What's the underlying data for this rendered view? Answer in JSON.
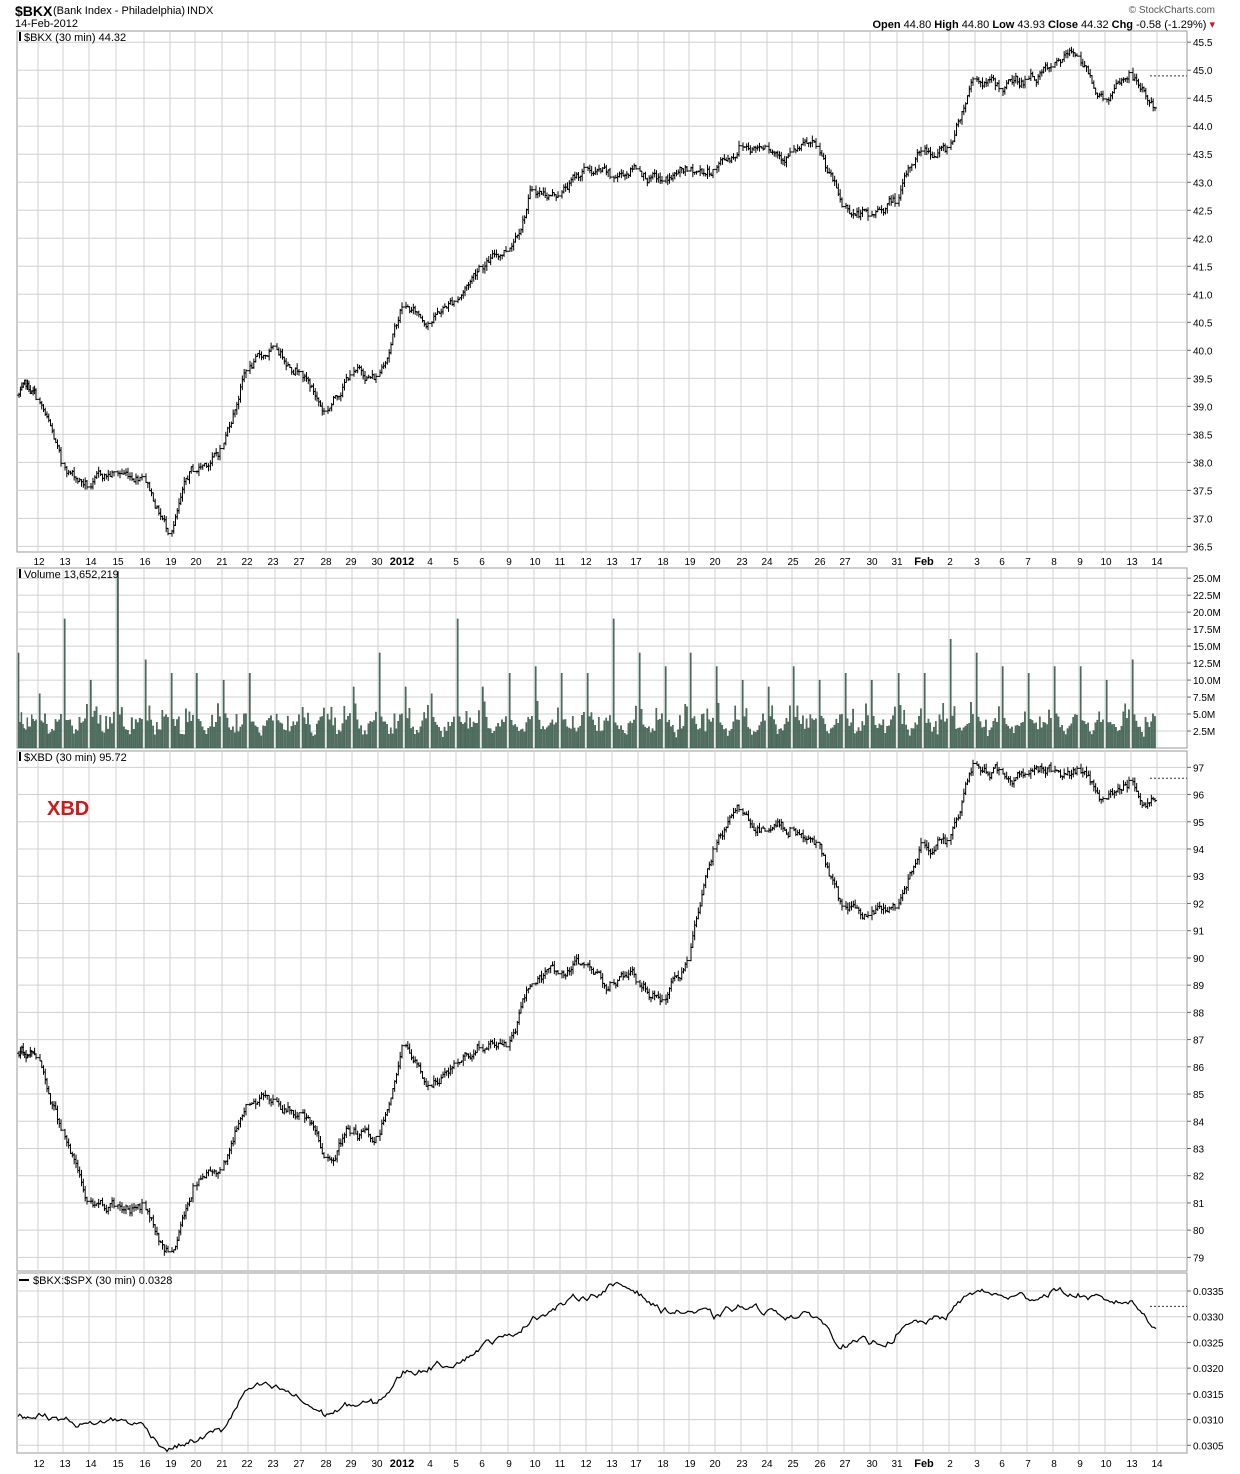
{
  "header": {
    "symbol": "$BKX",
    "name": "(Bank Index - Philadelphia)",
    "exchange": "INDX",
    "date": "14-Feb-2012",
    "watermark": "© StockCharts.com",
    "quote": {
      "open_label": "Open",
      "open": "44.80",
      "high_label": "High",
      "high": "44.80",
      "low_label": "Low",
      "low": "43.93",
      "close_label": "Close",
      "close": "44.32",
      "chg_label": "Chg",
      "chg": "-0.58 (-1.29%)",
      "chg_arrow": "▾"
    }
  },
  "colors": {
    "grid": "#d0d0d0",
    "bars": "#000000",
    "volume": "#4e7261",
    "annotation": "#d01818",
    "down_arrow": "#c02020"
  },
  "x_axis": {
    "labels": [
      "12",
      "13",
      "14",
      "15",
      "16",
      "19",
      "20",
      "21",
      "22",
      "23",
      "27",
      "28",
      "29",
      "30",
      "2012",
      "4",
      "5",
      "6",
      "9",
      "10",
      "11",
      "12",
      "13",
      "17",
      "18",
      "19",
      "20",
      "23",
      "24",
      "25",
      "26",
      "27",
      "30",
      "31",
      "Feb",
      "2",
      "3",
      "6",
      "7",
      "8",
      "9",
      "10",
      "13",
      "14"
    ],
    "bold_labels": [
      "2012",
      "Feb"
    ]
  },
  "panels": {
    "price": {
      "legend": "$BKX (30 min) 44.32",
      "last": 44.32
    },
    "volume": {
      "legend": "Volume 13,652,219"
    },
    "xbd": {
      "legend": "$XBD (30 min) 95.72",
      "annotation": "XBD",
      "last": 95.72
    },
    "ratio": {
      "legend": "$BKX:$SPX (30 min) 0.0328",
      "last": 0.0328
    }
  },
  "chart_data": [
    {
      "type": "ohlc",
      "series_name": "$BKX (30 min)",
      "x": [
        "12",
        "13",
        "14",
        "15",
        "16",
        "19",
        "20",
        "21",
        "22",
        "23",
        "27",
        "28",
        "29",
        "30",
        "2012",
        "4",
        "5",
        "6",
        "9",
        "10",
        "11",
        "12",
        "13",
        "17",
        "18",
        "19",
        "20",
        "23",
        "24",
        "25",
        "26",
        "27",
        "30",
        "31",
        "Feb",
        "2",
        "3",
        "6",
        "7",
        "8",
        "9",
        "10",
        "13",
        "14"
      ],
      "approx_close_by_day": [
        39.2,
        38.0,
        37.6,
        37.8,
        37.8,
        36.8,
        37.9,
        38.2,
        39.7,
        40.0,
        39.7,
        38.9,
        39.6,
        39.5,
        40.8,
        40.5,
        40.9,
        41.5,
        41.8,
        42.9,
        42.8,
        43.2,
        43.1,
        43.3,
        43.0,
        43.2,
        43.2,
        43.6,
        43.7,
        43.5,
        43.6,
        42.6,
        42.4,
        42.7,
        43.6,
        43.6,
        44.9,
        44.7,
        44.8,
        45.0,
        45.3,
        44.5,
        44.9,
        44.3
      ],
      "ylim": [
        36.4,
        45.7
      ],
      "yticks": [
        "45.5",
        "45.0",
        "44.5",
        "44.0",
        "43.5",
        "43.0",
        "42.5",
        "42.0",
        "41.5",
        "41.0",
        "40.5",
        "40.0",
        "39.5",
        "39.0",
        "38.5",
        "38.0",
        "37.5",
        "37.0",
        "36.5"
      ],
      "last": 44.32,
      "ref_line": 44.9
    },
    {
      "type": "bar",
      "series_name": "Volume",
      "approx_daily_open_spike_millions": [
        14,
        8,
        19,
        10,
        26,
        13,
        11,
        11,
        10,
        11,
        5,
        6,
        5,
        9,
        14,
        9,
        8,
        19,
        9,
        11,
        12,
        11,
        11,
        19,
        14,
        12,
        14,
        12,
        10,
        9,
        12,
        10,
        11,
        10,
        11,
        11,
        16,
        14,
        12,
        11,
        12,
        12,
        10,
        13
      ],
      "ylim": [
        0,
        26.5
      ],
      "yticks": [
        "25.0M",
        "22.5M",
        "20.0M",
        "17.5M",
        "15.0M",
        "12.5M",
        "10.0M",
        "7.5M",
        "5.0M",
        "2.5M"
      ],
      "last": "13,652,219"
    },
    {
      "type": "ohlc",
      "series_name": "$XBD (30 min)",
      "approx_close_by_day": [
        86.5,
        83.8,
        81.0,
        81.0,
        80.9,
        79.1,
        81.5,
        82.3,
        84.7,
        84.8,
        84.3,
        82.6,
        83.7,
        83.3,
        86.7,
        85.3,
        86.0,
        86.8,
        86.8,
        89.2,
        89.5,
        89.8,
        89.0,
        89.2,
        88.5,
        89.8,
        94.0,
        95.5,
        94.6,
        94.7,
        94.1,
        91.8,
        91.4,
        91.9,
        94.3,
        94.3,
        97.0,
        96.9,
        96.8,
        97.0,
        96.8,
        95.7,
        96.5,
        95.72
      ],
      "ylim": [
        78.5,
        97.6
      ],
      "yticks": [
        "97",
        "96",
        "95",
        "94",
        "93",
        "92",
        "91",
        "90",
        "89",
        "88",
        "87",
        "86",
        "85",
        "84",
        "83",
        "82",
        "81",
        "80",
        "79"
      ],
      "last": 95.72,
      "ref_line": 96.6
    },
    {
      "type": "line",
      "series_name": "$BKX:$SPX (30 min)",
      "approx_close_by_day": [
        0.0311,
        0.031,
        0.0309,
        0.031,
        0.0309,
        0.0304,
        0.0306,
        0.0308,
        0.0316,
        0.0316,
        0.0314,
        0.0311,
        0.0313,
        0.0313,
        0.0319,
        0.032,
        0.0321,
        0.0324,
        0.0326,
        0.033,
        0.0332,
        0.0334,
        0.0336,
        0.0335,
        0.0331,
        0.0331,
        0.033,
        0.0332,
        0.0331,
        0.033,
        0.033,
        0.0324,
        0.0325,
        0.0326,
        0.0329,
        0.033,
        0.0335,
        0.0334,
        0.0334,
        0.0335,
        0.0334,
        0.0333,
        0.0333,
        0.0328
      ],
      "ylim": [
        0.03035,
        0.03385
      ],
      "yticks": [
        "0.0335",
        "0.0330",
        "0.0325",
        "0.0320",
        "0.0315",
        "0.0310",
        "0.0305"
      ],
      "last": 0.0328,
      "ref_line": 0.0332
    }
  ]
}
